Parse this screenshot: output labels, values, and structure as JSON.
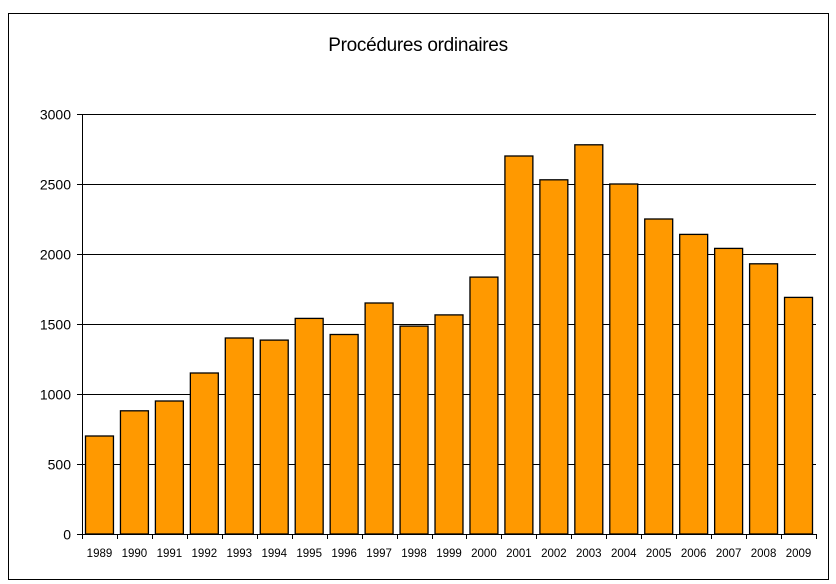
{
  "chart_data": {
    "type": "bar",
    "title": "Procédures ordinaires",
    "xlabel": "",
    "ylabel": "",
    "categories": [
      "1989",
      "1990",
      "1991",
      "1992",
      "1993",
      "1994",
      "1995",
      "1996",
      "1997",
      "1998",
      "1999",
      "2000",
      "2001",
      "2002",
      "2003",
      "2004",
      "2005",
      "2006",
      "2007",
      "2008",
      "2009"
    ],
    "values": [
      700,
      880,
      950,
      1150,
      1400,
      1385,
      1540,
      1425,
      1650,
      1485,
      1565,
      1835,
      2700,
      2530,
      2780,
      2500,
      2250,
      2140,
      2040,
      1930,
      1690
    ],
    "ylim": [
      0,
      3000
    ],
    "yticks": [
      0,
      500,
      1000,
      1500,
      2000,
      2500,
      3000
    ],
    "grid": true,
    "legend": "none",
    "colors": {
      "bar": "#FF9900",
      "bar_stroke": "#000000",
      "grid": "#000000",
      "background": "#FFFFFF"
    }
  }
}
